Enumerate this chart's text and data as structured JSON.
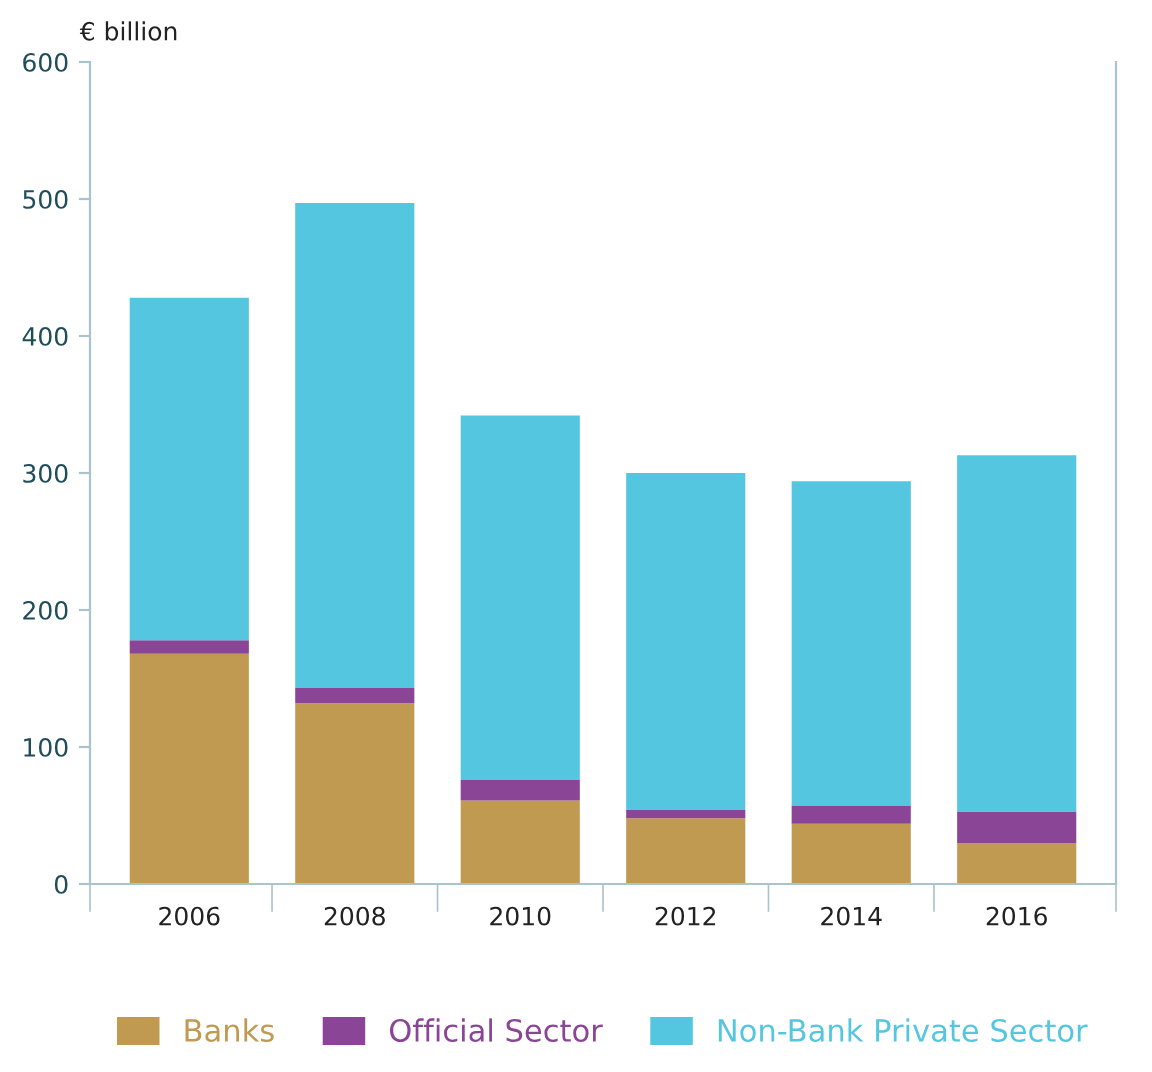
{
  "chart_data": {
    "type": "bar",
    "stacked": true,
    "ylabel": "€ billion",
    "categories": [
      "2006",
      "2008",
      "2010",
      "2012",
      "2014",
      "2016"
    ],
    "series": [
      {
        "name": "Banks",
        "color": "#c19a51",
        "values": [
          168,
          132,
          61,
          48,
          44,
          30
        ]
      },
      {
        "name": "Official Sector",
        "color": "#8a4597",
        "values": [
          10,
          11,
          15,
          6,
          13,
          23
        ]
      },
      {
        "name": "Non-Bank Private Sector",
        "color": "#54c6e0",
        "values": [
          250,
          354,
          266,
          246,
          237,
          260
        ]
      }
    ],
    "ylim": [
      0,
      600
    ],
    "yticks": [
      0,
      100,
      200,
      300,
      400,
      500,
      600
    ],
    "grid": false,
    "legend": "bottom"
  }
}
